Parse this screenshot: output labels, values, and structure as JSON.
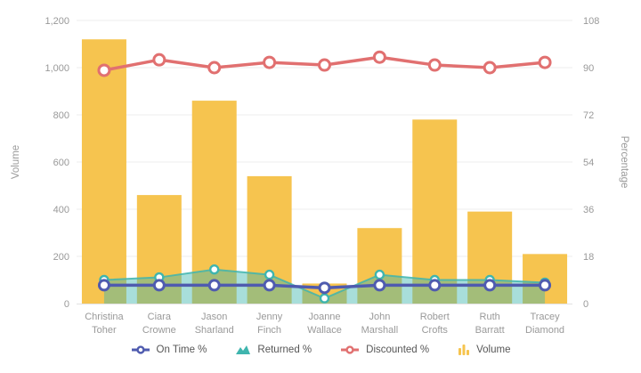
{
  "chart_data": {
    "type": "combo",
    "title": "",
    "categories": [
      "Christina Toher",
      "Ciara Crowne",
      "Jason Sharland",
      "Jenny Finch",
      "Joanne Wallace",
      "John Marshall",
      "Robert Crofts",
      "Ruth Barratt",
      "Tracey Diamond"
    ],
    "series": [
      {
        "name": "On Time %",
        "type": "line",
        "axis": "right",
        "color": "#4F5BAF",
        "values": [
          7,
          7,
          7,
          7,
          6,
          7,
          7,
          7,
          7
        ]
      },
      {
        "name": "Returned %",
        "type": "area",
        "axis": "right",
        "color": "#3FB5AE",
        "fill_opacity": 0.45,
        "values": [
          9,
          10,
          13,
          11,
          2,
          11,
          9,
          9,
          8
        ]
      },
      {
        "name": "Discounted %",
        "type": "line",
        "axis": "right",
        "color": "#E17070",
        "values": [
          89,
          93,
          90,
          92,
          91,
          94,
          91,
          90,
          92
        ]
      },
      {
        "name": "Volume",
        "type": "bar",
        "axis": "left",
        "color": "#F6C44F",
        "values": [
          1120,
          460,
          860,
          540,
          85,
          320,
          780,
          390,
          210
        ]
      }
    ],
    "left_axis": {
      "label": "Volume",
      "min": 0,
      "max": 1200,
      "step": 200,
      "tick_labels": [
        "0",
        "200",
        "400",
        "600",
        "800",
        "1,000",
        "1,200"
      ]
    },
    "right_axis": {
      "label": "Percentage",
      "min": 0,
      "max": 108,
      "step": 18,
      "tick_labels": [
        "0",
        "18",
        "36",
        "54",
        "72",
        "90",
        "108"
      ]
    },
    "grid": "horizontal",
    "legend_position": "bottom"
  }
}
